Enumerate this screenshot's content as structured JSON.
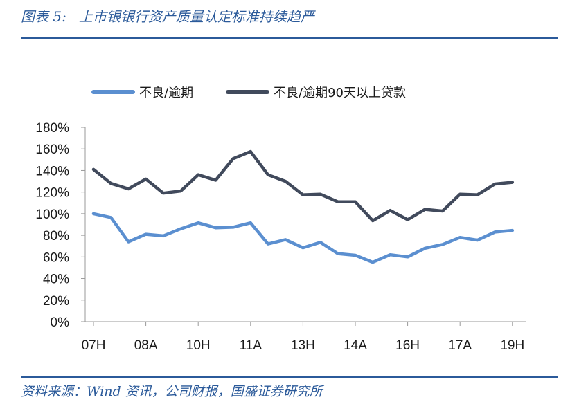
{
  "header": {
    "figure_number": "图表 5:",
    "title": "上市银银行资产质量认定标准持续趋严"
  },
  "footer": {
    "source": "资料来源：Wind 资讯，公司财报，国盛证券研究所"
  },
  "colors": {
    "brand_blue": "#2b5a9a",
    "series1": "#5b8fd0",
    "series2": "#414a5c",
    "axis": "#999999"
  },
  "chart_data": {
    "type": "line",
    "title": "",
    "xlabel": "",
    "ylabel": "",
    "ylim": [
      0,
      180
    ],
    "yticks": [
      0,
      20,
      40,
      60,
      80,
      100,
      120,
      140,
      160,
      180
    ],
    "ytick_labels": [
      "0%",
      "20%",
      "40%",
      "60%",
      "80%",
      "100%",
      "120%",
      "140%",
      "160%",
      "180%"
    ],
    "xtick_labels": [
      "07H",
      "08A",
      "10H",
      "11A",
      "13H",
      "14A",
      "16H",
      "17A",
      "19H"
    ],
    "xtick_index": [
      0,
      3,
      6,
      9,
      12,
      15,
      18,
      21,
      24
    ],
    "n_points": 25,
    "legend_position": "top",
    "grid": false,
    "series": [
      {
        "name": "不良/逾期",
        "color": "#5b8fd0",
        "values": [
          100,
          96.5,
          74,
          81,
          79.5,
          86,
          91.5,
          87,
          87.5,
          91.5,
          72,
          76,
          68.5,
          73.5,
          63,
          61.5,
          55,
          62,
          60,
          68,
          71.5,
          78,
          75.5,
          83,
          84.5
        ]
      },
      {
        "name": "不良/逾期90天以上贷款",
        "color": "#414a5c",
        "values": [
          141,
          128,
          123,
          132,
          119,
          121,
          136,
          131,
          151,
          157.5,
          136,
          130,
          117.5,
          118,
          111,
          111,
          93.5,
          103,
          94.5,
          104,
          102.5,
          118,
          117.5,
          127.5,
          129
        ]
      }
    ]
  }
}
